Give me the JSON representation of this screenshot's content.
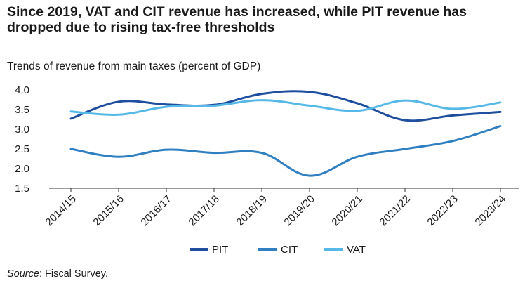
{
  "chart_data": {
    "type": "line",
    "title": "Since 2019, VAT and CIT revenue has increased, while PIT revenue has dropped due to rising tax-free thresholds",
    "subtitle": "Trends of revenue from main taxes (percent of GDP)",
    "xlabel": "",
    "ylabel": "",
    "categories": [
      "2014/15",
      "2015/16",
      "2016/17",
      "2017/18",
      "2018/19",
      "2019/20",
      "2020/21",
      "2021/22",
      "2022/23",
      "2023/24"
    ],
    "ylim": [
      1.5,
      4.0
    ],
    "yticks": [
      "4.0",
      "3.5",
      "3.0",
      "2.5",
      "2.0",
      "1.5"
    ],
    "grid": false,
    "legend_position": "bottom-center",
    "series": [
      {
        "name": "PIT",
        "color": "#1f4e9e",
        "values": [
          3.27,
          3.7,
          3.63,
          3.62,
          3.9,
          3.95,
          3.66,
          3.23,
          3.35,
          3.44
        ]
      },
      {
        "name": "CIT",
        "color": "#2f7fc1",
        "values": [
          2.5,
          2.3,
          2.48,
          2.4,
          2.4,
          1.82,
          2.3,
          2.5,
          2.7,
          3.08
        ]
      },
      {
        "name": "VAT",
        "color": "#55b8e6",
        "values": [
          3.45,
          3.37,
          3.57,
          3.6,
          3.74,
          3.6,
          3.47,
          3.73,
          3.52,
          3.68
        ]
      }
    ],
    "source_prefix": "Source",
    "source_text": ": Fiscal Survey."
  }
}
